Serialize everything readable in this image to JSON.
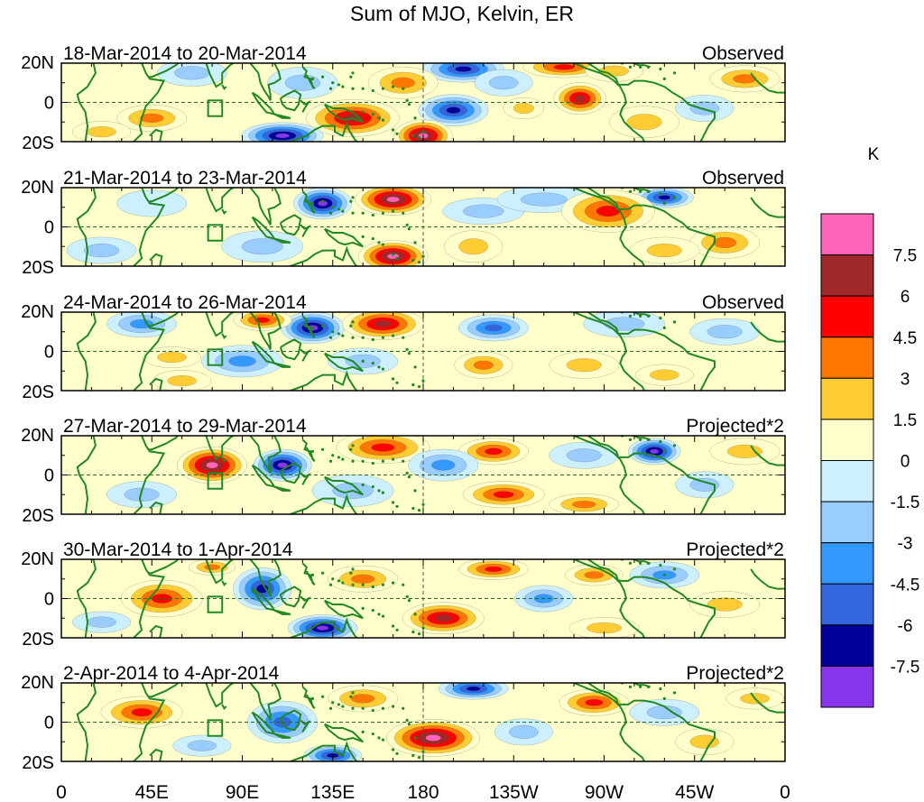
{
  "chart_data": {
    "type": "heatmap",
    "title": "Sum of MJO, Kelvin, ER",
    "quantity_unit": "K",
    "x_ticks": [
      "0",
      "45E",
      "90E",
      "135E",
      "180",
      "135W",
      "90W",
      "45W",
      "0"
    ],
    "y_ticks": [
      "20N",
      "0",
      "20S"
    ],
    "x_range_deg": [
      0,
      360
    ],
    "y_range_deg": [
      -20,
      20
    ],
    "panels": [
      {
        "period": "18-Mar-2014 to 20-Mar-2014",
        "kind": "Observed",
        "anomalies": [
          {
            "lon": 200,
            "lat": 17,
            "v": -7.5,
            "rx": 14,
            "ry": 5
          },
          {
            "lon": 250,
            "lat": 18,
            "v": 5,
            "rx": 14,
            "ry": 4
          },
          {
            "lon": 275,
            "lat": 16,
            "v": 2,
            "rx": 10,
            "ry": 4
          },
          {
            "lon": 258,
            "lat": 2,
            "v": 6,
            "rx": 9,
            "ry": 6
          },
          {
            "lon": 230,
            "lat": -3,
            "v": 2.5,
            "rx": 7,
            "ry": 4
          },
          {
            "lon": 195,
            "lat": -4,
            "v": -7,
            "rx": 12,
            "ry": 6
          },
          {
            "lon": 170,
            "lat": 10,
            "v": 3.5,
            "rx": 12,
            "ry": 6
          },
          {
            "lon": 145,
            "lat": -8,
            "v": 6.5,
            "rx": 16,
            "ry": 7
          },
          {
            "lon": 180,
            "lat": -17,
            "v": 8,
            "rx": 10,
            "ry": 6
          },
          {
            "lon": 110,
            "lat": -17,
            "v": -8,
            "rx": 14,
            "ry": 5
          },
          {
            "lon": 65,
            "lat": 15,
            "v": -2,
            "rx": 12,
            "ry": 5
          },
          {
            "lon": 45,
            "lat": -8,
            "v": 4,
            "rx": 12,
            "ry": 5
          },
          {
            "lon": 20,
            "lat": -15,
            "v": 2,
            "rx": 10,
            "ry": 4
          },
          {
            "lon": 120,
            "lat": 10,
            "v": -2.5,
            "rx": 12,
            "ry": 6
          },
          {
            "lon": 290,
            "lat": -10,
            "v": 2,
            "rx": 12,
            "ry": 6
          },
          {
            "lon": 340,
            "lat": 12,
            "v": 4,
            "rx": 12,
            "ry": 5
          },
          {
            "lon": 320,
            "lat": -3,
            "v": -2,
            "rx": 10,
            "ry": 5
          },
          {
            "lon": 220,
            "lat": 10,
            "v": -3,
            "rx": 10,
            "ry": 5
          }
        ]
      },
      {
        "period": "21-Mar-2014 to 23-Mar-2014",
        "kind": "Observed",
        "anomalies": [
          {
            "lon": 130,
            "lat": 12,
            "v": -8,
            "rx": 10,
            "ry": 6
          },
          {
            "lon": 165,
            "lat": 14,
            "v": 8,
            "rx": 13,
            "ry": 6
          },
          {
            "lon": 165,
            "lat": -15,
            "v": 7.5,
            "rx": 12,
            "ry": 6
          },
          {
            "lon": 210,
            "lat": 8,
            "v": -3,
            "rx": 14,
            "ry": 5
          },
          {
            "lon": 240,
            "lat": 14,
            "v": -3,
            "rx": 16,
            "ry": 5
          },
          {
            "lon": 300,
            "lat": 15,
            "v": -7,
            "rx": 10,
            "ry": 4
          },
          {
            "lon": 272,
            "lat": 8,
            "v": 5,
            "rx": 16,
            "ry": 8
          },
          {
            "lon": 330,
            "lat": -8,
            "v": 4,
            "rx": 12,
            "ry": 6
          },
          {
            "lon": 205,
            "lat": -10,
            "v": 1.5,
            "rx": 10,
            "ry": 6
          },
          {
            "lon": 45,
            "lat": 12,
            "v": -1.5,
            "rx": 12,
            "ry": 5
          },
          {
            "lon": 100,
            "lat": -10,
            "v": -2,
            "rx": 14,
            "ry": 6
          },
          {
            "lon": 20,
            "lat": -12,
            "v": -2,
            "rx": 12,
            "ry": 5
          },
          {
            "lon": 300,
            "lat": -12,
            "v": 2,
            "rx": 12,
            "ry": 5
          }
        ]
      },
      {
        "period": "24-Mar-2014 to 26-Mar-2014",
        "kind": "Observed",
        "anomalies": [
          {
            "lon": 125,
            "lat": 12,
            "v": -8,
            "rx": 11,
            "ry": 6
          },
          {
            "lon": 100,
            "lat": 16,
            "v": 5.5,
            "rx": 10,
            "ry": 4
          },
          {
            "lon": 160,
            "lat": 14,
            "v": 6.5,
            "rx": 14,
            "ry": 6
          },
          {
            "lon": 40,
            "lat": 14,
            "v": -3.5,
            "rx": 12,
            "ry": 5
          },
          {
            "lon": 55,
            "lat": -3,
            "v": 2,
            "rx": 10,
            "ry": 4
          },
          {
            "lon": 90,
            "lat": -5,
            "v": -4.5,
            "rx": 14,
            "ry": 6
          },
          {
            "lon": 150,
            "lat": -5,
            "v": -3,
            "rx": 12,
            "ry": 5
          },
          {
            "lon": 215,
            "lat": 12,
            "v": -5,
            "rx": 12,
            "ry": 5
          },
          {
            "lon": 210,
            "lat": -7,
            "v": 4,
            "rx": 10,
            "ry": 5
          },
          {
            "lon": 260,
            "lat": -7,
            "v": 2.5,
            "rx": 12,
            "ry": 5
          },
          {
            "lon": 280,
            "lat": 14,
            "v": -3,
            "rx": 14,
            "ry": 5
          },
          {
            "lon": 330,
            "lat": 10,
            "v": -2,
            "rx": 12,
            "ry": 5
          },
          {
            "lon": 60,
            "lat": -15,
            "v": 2,
            "rx": 10,
            "ry": 4
          },
          {
            "lon": 300,
            "lat": -12,
            "v": 2,
            "rx": 10,
            "ry": 4
          }
        ]
      },
      {
        "period": "27-Mar-2014 to 29-Mar-2014",
        "kind": "Projected*2",
        "anomalies": [
          {
            "lon": 75,
            "lat": 5,
            "v": 8,
            "rx": 12,
            "ry": 7
          },
          {
            "lon": 110,
            "lat": 5,
            "v": -8,
            "rx": 10,
            "ry": 6
          },
          {
            "lon": 160,
            "lat": 14,
            "v": 5,
            "rx": 16,
            "ry": 6
          },
          {
            "lon": 215,
            "lat": 12,
            "v": 5,
            "rx": 12,
            "ry": 5
          },
          {
            "lon": 190,
            "lat": 5,
            "v": -3.5,
            "rx": 12,
            "ry": 6
          },
          {
            "lon": 295,
            "lat": 12,
            "v": -8,
            "rx": 9,
            "ry": 5
          },
          {
            "lon": 260,
            "lat": 10,
            "v": -3,
            "rx": 12,
            "ry": 5
          },
          {
            "lon": 220,
            "lat": -10,
            "v": 4.5,
            "rx": 14,
            "ry": 5
          },
          {
            "lon": 260,
            "lat": -15,
            "v": 3,
            "rx": 12,
            "ry": 4
          },
          {
            "lon": 145,
            "lat": -8,
            "v": -3,
            "rx": 14,
            "ry": 6
          },
          {
            "lon": 40,
            "lat": -10,
            "v": -2,
            "rx": 12,
            "ry": 5
          },
          {
            "lon": 340,
            "lat": 12,
            "v": 2.5,
            "rx": 12,
            "ry": 5
          },
          {
            "lon": 320,
            "lat": -5,
            "v": -2,
            "rx": 10,
            "ry": 5
          }
        ]
      },
      {
        "period": "30-Mar-2014 to 1-Apr-2014",
        "kind": "Projected*2",
        "anomalies": [
          {
            "lon": 50,
            "lat": 0,
            "v": 5.5,
            "rx": 14,
            "ry": 7
          },
          {
            "lon": 100,
            "lat": 5,
            "v": -6.5,
            "rx": 10,
            "ry": 8
          },
          {
            "lon": 130,
            "lat": -15,
            "v": -8,
            "rx": 12,
            "ry": 5
          },
          {
            "lon": 190,
            "lat": -10,
            "v": 7,
            "rx": 14,
            "ry": 6
          },
          {
            "lon": 215,
            "lat": 15,
            "v": 4.5,
            "rx": 12,
            "ry": 4
          },
          {
            "lon": 240,
            "lat": 0,
            "v": -4,
            "rx": 10,
            "ry": 5
          },
          {
            "lon": 300,
            "lat": 12,
            "v": -4,
            "rx": 12,
            "ry": 5
          },
          {
            "lon": 265,
            "lat": 12,
            "v": 3,
            "rx": 10,
            "ry": 4
          },
          {
            "lon": 150,
            "lat": 10,
            "v": 3,
            "rx": 12,
            "ry": 5
          },
          {
            "lon": 330,
            "lat": -3,
            "v": 2,
            "rx": 12,
            "ry": 5
          },
          {
            "lon": 20,
            "lat": -12,
            "v": -2,
            "rx": 10,
            "ry": 4
          },
          {
            "lon": 270,
            "lat": -15,
            "v": 2,
            "rx": 12,
            "ry": 4
          },
          {
            "lon": 75,
            "lat": 16,
            "v": 3,
            "rx": 8,
            "ry": 3
          }
        ]
      },
      {
        "period": "2-Apr-2014 to 4-Apr-2014",
        "kind": "Projected*2",
        "anomalies": [
          {
            "lon": 40,
            "lat": 5,
            "v": 5.5,
            "rx": 14,
            "ry": 6
          },
          {
            "lon": 110,
            "lat": 0,
            "v": -5,
            "rx": 12,
            "ry": 8
          },
          {
            "lon": 135,
            "lat": -17,
            "v": -7.5,
            "rx": 10,
            "ry": 4
          },
          {
            "lon": 185,
            "lat": -8,
            "v": 8,
            "rx": 16,
            "ry": 7
          },
          {
            "lon": 205,
            "lat": 17,
            "v": -7,
            "rx": 12,
            "ry": 4
          },
          {
            "lon": 265,
            "lat": 10,
            "v": 5,
            "rx": 12,
            "ry": 5
          },
          {
            "lon": 150,
            "lat": 12,
            "v": 3,
            "rx": 12,
            "ry": 5
          },
          {
            "lon": 230,
            "lat": -5,
            "v": -2.5,
            "rx": 10,
            "ry": 5
          },
          {
            "lon": 300,
            "lat": 5,
            "v": -2,
            "rx": 12,
            "ry": 5
          },
          {
            "lon": 320,
            "lat": -10,
            "v": 2,
            "rx": 10,
            "ry": 5
          },
          {
            "lon": 70,
            "lat": -12,
            "v": -2,
            "rx": 10,
            "ry": 4
          },
          {
            "lon": 345,
            "lat": 12,
            "v": 2,
            "rx": 10,
            "ry": 4
          }
        ]
      }
    ]
  },
  "colorbar": {
    "unit_label": "K",
    "levels": [
      "7.5",
      "6",
      "4.5",
      "3",
      "1.5",
      "0",
      "-1.5",
      "-3",
      "-4.5",
      "-6",
      "-7.5"
    ],
    "colors": [
      "#ff66bb",
      "#a02828",
      "#ff0000",
      "#ff7700",
      "#ffcc33",
      "#ffffcc",
      "#ccf0ff",
      "#99ccff",
      "#3399ff",
      "#3366dd",
      "#000099",
      "#8833ee"
    ]
  },
  "land_color": "#228822"
}
